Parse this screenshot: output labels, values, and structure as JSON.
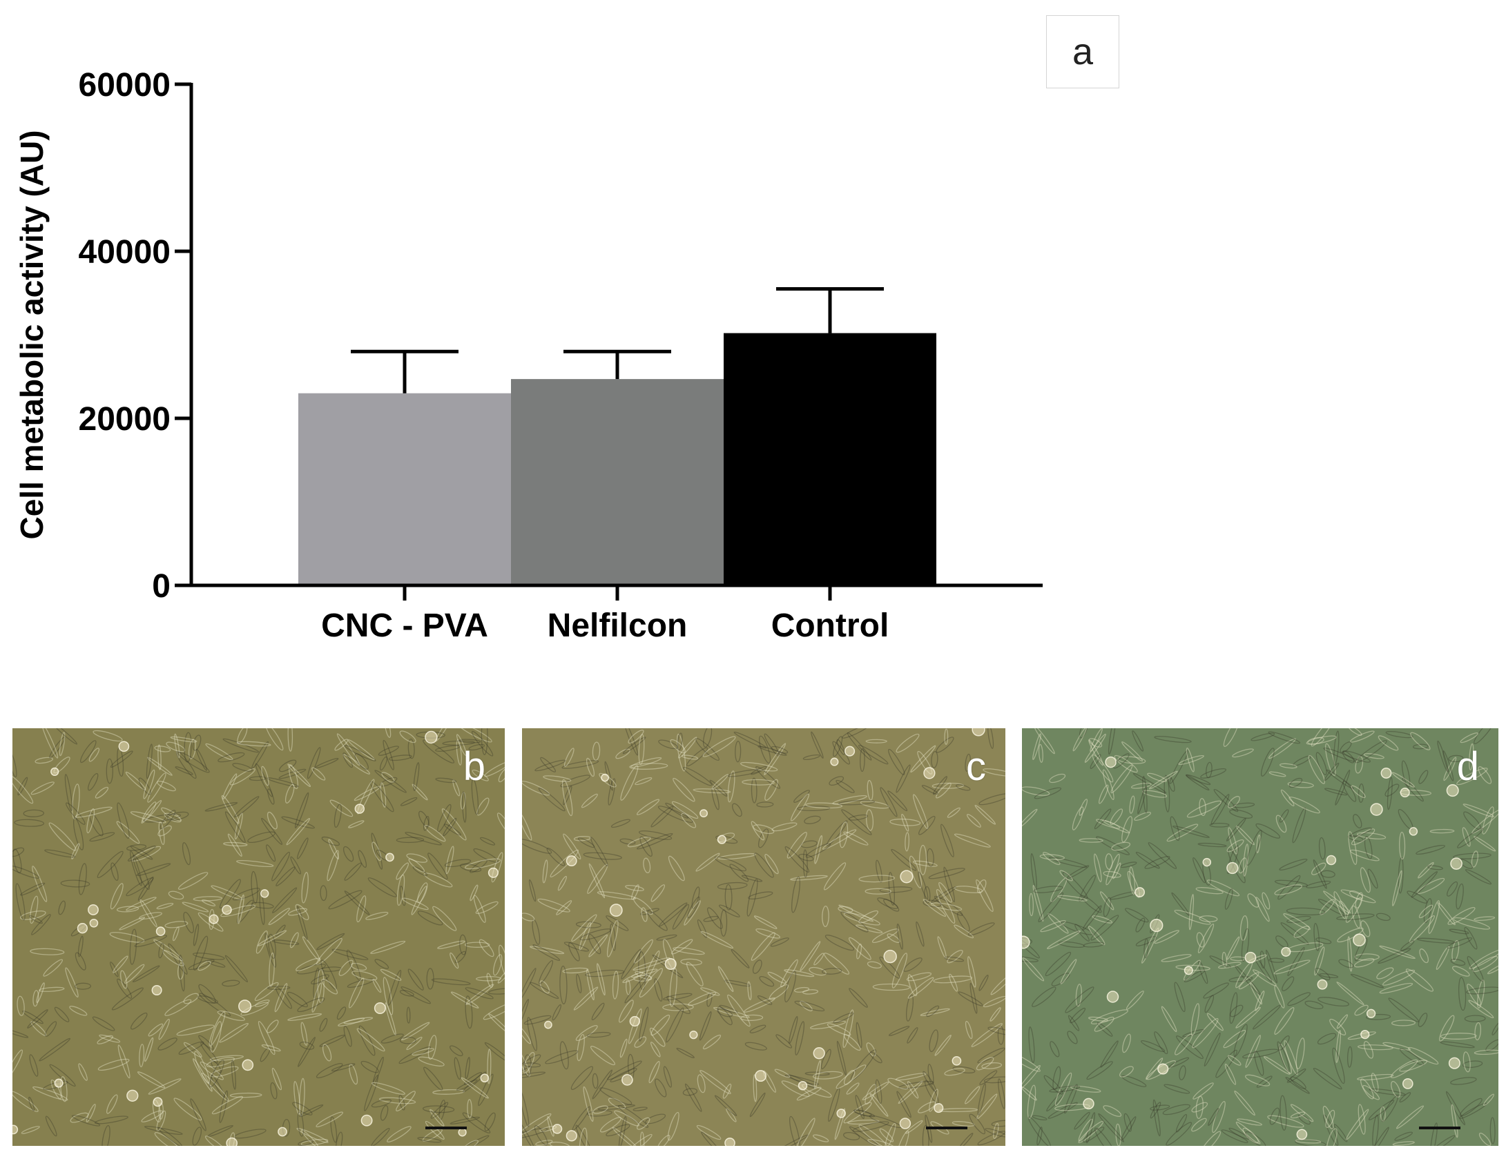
{
  "panel_labels": {
    "a": "a",
    "b": "b",
    "c": "c",
    "d": "d"
  },
  "chart_data": {
    "type": "bar",
    "title": "",
    "xlabel": "",
    "ylabel": "Cell metabolic activity (AU)",
    "ylim": [
      0,
      60000
    ],
    "yticks": [
      0,
      20000,
      40000,
      60000
    ],
    "ytick_labels": [
      "0",
      "20000",
      "40000",
      "60000"
    ],
    "categories": [
      "CNC - PVA",
      "Nelfilcon",
      "Control"
    ],
    "values": [
      23000,
      24700,
      30200
    ],
    "error_upper": [
      28000,
      28000,
      35500
    ],
    "bar_colors": [
      "#a09fa4",
      "#7a7c7b",
      "#000000"
    ],
    "grid": false,
    "legend": "none"
  },
  "micrographs": [
    {
      "label": "b",
      "tint": "#86804f"
    },
    {
      "label": "c",
      "tint": "#8c8556"
    },
    {
      "label": "d",
      "tint": "#6f8660"
    }
  ]
}
